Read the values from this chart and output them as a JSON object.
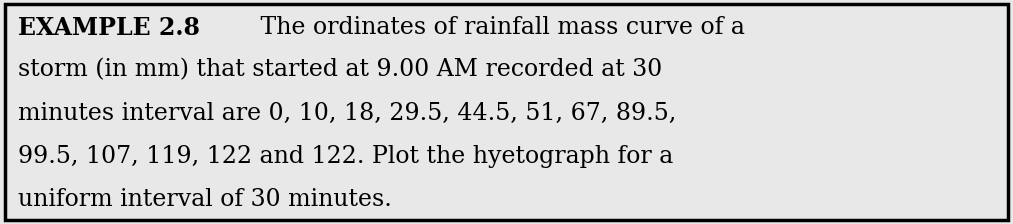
{
  "bold_text": "EXAMPLE 2.8",
  "line1_normal": " The ordinates of rainfall mass curve of a",
  "line2": "storm (in mm) that started at 9.00 AM recorded at 30",
  "line3": "minutes interval are 0, 10, 18, 29.5, 44.5, 51, 67, 89.5,",
  "line4": "99.5, 107, 119, 122 and 122. Plot the hyetograph for a",
  "line5": "uniform interval of 30 minutes.",
  "background_color": "#e8e8e8",
  "border_color": "#000000",
  "text_color": "#000000",
  "font_size": 17,
  "figsize": [
    10.13,
    2.24
  ],
  "dpi": 100
}
